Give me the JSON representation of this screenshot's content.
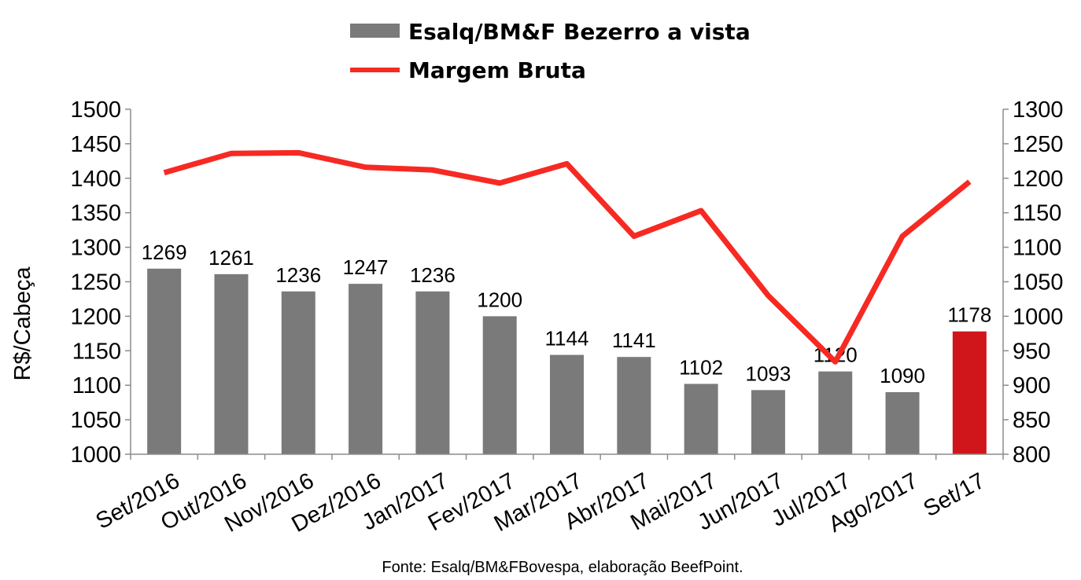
{
  "chart_data": {
    "type": "bar",
    "categories": [
      "Set/2016",
      "Out/2016",
      "Nov/2016",
      "Dez/2016",
      "Jan/2017",
      "Fev/2017",
      "Mar/2017",
      "Abr/2017",
      "Mai/2017",
      "Jun/2017",
      "Jul/2017",
      "Ago/2017",
      "Set/17"
    ],
    "series": [
      {
        "name": "Esalq/BM&F Bezerro a vista",
        "type": "bar",
        "axis": "left",
        "values": [
          1269,
          1261,
          1236,
          1247,
          1236,
          1200,
          1144,
          1141,
          1102,
          1093,
          1120,
          1090,
          1178
        ],
        "color": "#7a7a7a",
        "highlight_color": "#d0151b",
        "highlight_index": 12
      },
      {
        "name": "Margem Bruta",
        "type": "line",
        "axis": "right",
        "values": [
          1208,
          1236,
          1237,
          1216,
          1212,
          1193,
          1221,
          1116,
          1153,
          1030,
          934,
          1116,
          1195
        ],
        "color": "#f62a23"
      }
    ],
    "ylabel": "R$/Cabeça",
    "ylim": [
      1000,
      1500
    ],
    "yticks": [
      1000,
      1050,
      1100,
      1150,
      1200,
      1250,
      1300,
      1350,
      1400,
      1450,
      1500
    ],
    "y2lim": [
      800,
      1300
    ],
    "y2ticks": [
      800,
      850,
      900,
      950,
      1000,
      1050,
      1100,
      1150,
      1200,
      1250,
      1300
    ],
    "legend_position": "top-center",
    "grid": false
  },
  "source": "Fonte: Esalq/BM&FBovespa, elaboração BeefPoint."
}
